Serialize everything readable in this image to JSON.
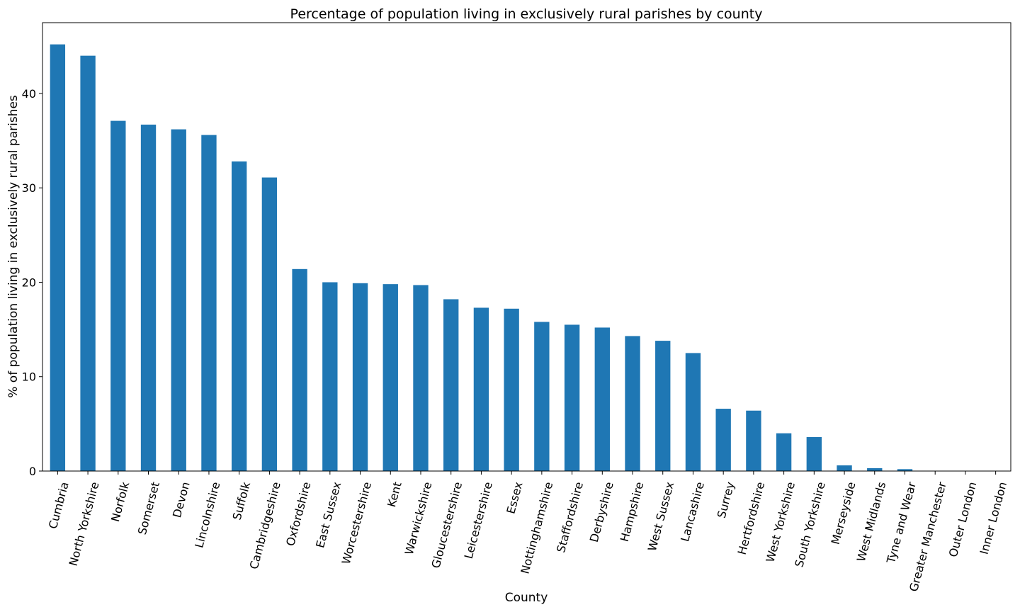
{
  "chart_data": {
    "type": "bar",
    "title": "Percentage of population living in exclusively rural parishes by county",
    "xlabel": "County",
    "ylabel": "% of population living in exclusively rural parishes",
    "ylim": [
      0,
      47.5
    ],
    "yticks": [
      0,
      10,
      20,
      30,
      40
    ],
    "grid": false,
    "legend": "none",
    "bar_color": "#1f77b4",
    "categories": [
      "Cumbria",
      "North Yorkshire",
      "Norfolk",
      "Somerset",
      "Devon",
      "Lincolnshire",
      "Suffolk",
      "Cambridgeshire",
      "Oxfordshire",
      "East Sussex",
      "Worcestershire",
      "Kent",
      "Warwickshire",
      "Gloucestershire",
      "Leicestershire",
      "Essex",
      "Nottinghamshire",
      "Staffordshire",
      "Derbyshire",
      "Hampshire",
      "West Sussex",
      "Lancashire",
      "Surrey",
      "Hertfordshire",
      "West Yorkshire",
      "South Yorkshire",
      "Merseyside",
      "West Midlands",
      "Tyne and Wear",
      "Greater Manchester",
      "Outer London",
      "Inner London"
    ],
    "values": [
      45.2,
      44.0,
      37.1,
      36.7,
      36.2,
      35.6,
      32.8,
      31.1,
      21.4,
      20.0,
      19.9,
      19.8,
      19.7,
      18.2,
      17.3,
      17.2,
      15.8,
      15.5,
      15.2,
      14.3,
      13.8,
      12.5,
      6.6,
      6.4,
      4.0,
      3.6,
      0.6,
      0.3,
      0.2,
      0.0,
      0.0,
      0.0
    ]
  }
}
